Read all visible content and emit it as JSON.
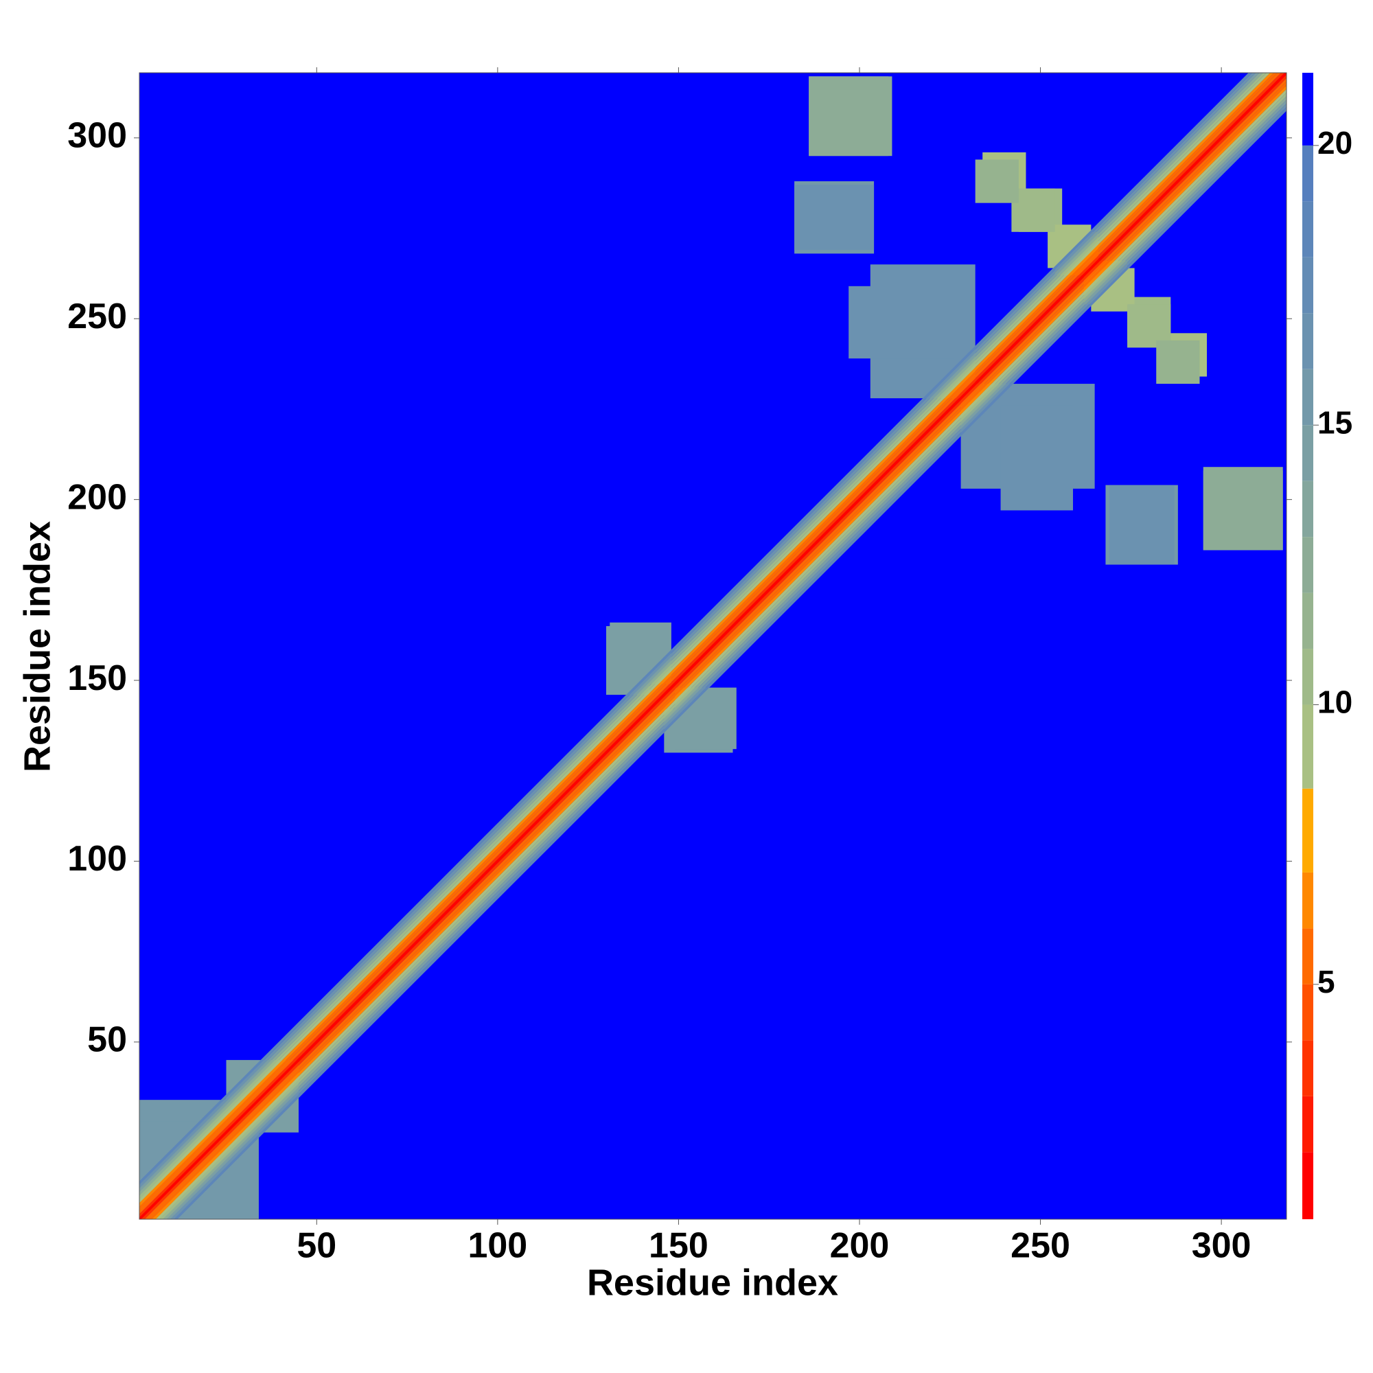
{
  "chart_data": {
    "type": "heatmap",
    "xlabel": "Residue index",
    "ylabel": "Residue index",
    "xlim": [
      1,
      318
    ],
    "ylim": [
      1,
      318
    ],
    "xticks": [
      50,
      100,
      150,
      200,
      250,
      300
    ],
    "yticks": [
      50,
      100,
      150,
      200,
      250,
      300
    ],
    "background": 21,
    "mirror": true,
    "diagonal": {
      "offsets": [
        0,
        1,
        2,
        3,
        4,
        5,
        6,
        7,
        8,
        9,
        10
      ],
      "values": [
        0.9,
        3.8,
        5.5,
        5.5,
        6.5,
        9,
        10.5,
        12,
        14,
        16,
        18
      ]
    },
    "patches": [
      {
        "x": [
          186,
          208
        ],
        "y": [
          295,
          317
        ],
        "value": 13
      },
      {
        "x": [
          182,
          204
        ],
        "y": [
          268,
          288
        ],
        "value": 15
      },
      {
        "x": [
          234,
          246
        ],
        "y": [
          284,
          296
        ],
        "value": 9
      },
      {
        "x": [
          244,
          256
        ],
        "y": [
          274,
          286
        ],
        "value": 10
      },
      {
        "x": [
          254,
          266
        ],
        "y": [
          262,
          274
        ],
        "value": 8
      },
      {
        "x": [
          264,
          276
        ],
        "y": [
          252,
          264
        ],
        "value": 9
      },
      {
        "x": [
          274,
          286
        ],
        "y": [
          242,
          254
        ],
        "value": 10
      },
      {
        "x": [
          282,
          294
        ],
        "y": [
          232,
          244
        ],
        "value": 11
      },
      {
        "x": [
          203,
          232
        ],
        "y": [
          228,
          265
        ],
        "value": 16
      },
      {
        "x": [
          239,
          259
        ],
        "y": [
          197,
          226
        ],
        "value": 16
      },
      {
        "x": [
          269,
          287
        ],
        "y": [
          182,
          204
        ],
        "value": 16
      },
      {
        "x": [
          295,
          317
        ],
        "y": [
          186,
          209
        ],
        "value": 12
      },
      {
        "x": [
          130,
          142
        ],
        "y": [
          146,
          165
        ],
        "value": 14
      },
      {
        "x": [
          149,
          166
        ],
        "y": [
          131,
          148
        ],
        "value": 14
      },
      {
        "x": [
          1,
          28
        ],
        "y": [
          1,
          34
        ],
        "value": 15
      },
      {
        "x": [
          25,
          45
        ],
        "y": [
          25,
          45
        ],
        "value": 14
      }
    ],
    "clim": [
      0.8,
      21.3
    ],
    "cticks": [
      5,
      10,
      15,
      20
    ],
    "levels": [
      0.8,
      2,
      3,
      4,
      5,
      6,
      7,
      8.5,
      10,
      11,
      12,
      13,
      14,
      15,
      16,
      17,
      18,
      19,
      20,
      21.3
    ],
    "colors": [
      "#ff0000",
      "#ff1a00",
      "#ff3300",
      "#ff5000",
      "#ff6a00",
      "#ff8800",
      "#ffaa00",
      "#a9c083",
      "#9fba89",
      "#96b38f",
      "#8dac96",
      "#84a69d",
      "#7b9fa4",
      "#7399aa",
      "#6b92b0",
      "#648cb5",
      "#5d86b9",
      "#567fbe",
      "#0000ff"
    ]
  }
}
